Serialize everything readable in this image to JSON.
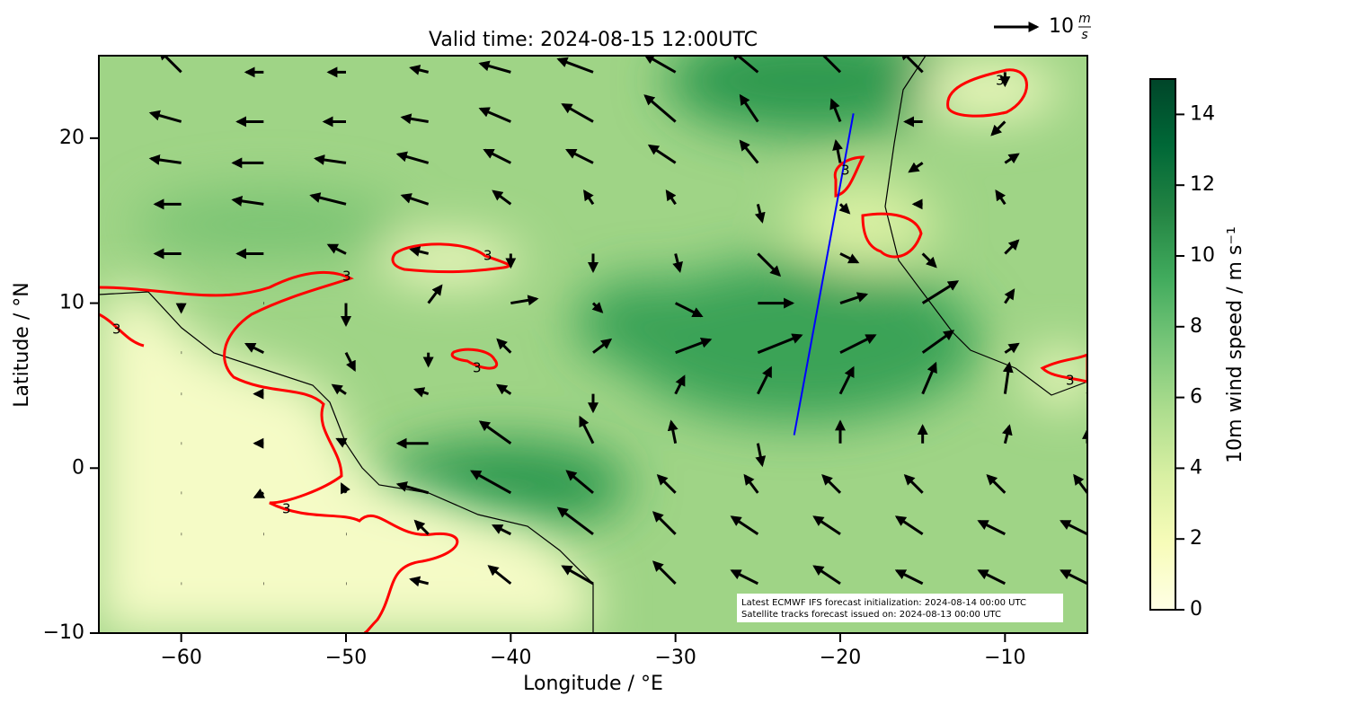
{
  "chart_data": {
    "type": "quiver_map",
    "title": "Valid time: 2024-08-15 12:00UTC",
    "x_label": "Longitude / °E",
    "y_label": "Latitude / °N",
    "xlim": [
      -65,
      -5
    ],
    "ylim": [
      -10,
      25
    ],
    "xticks": [
      {
        "value": -60,
        "label": "−60"
      },
      {
        "value": -50,
        "label": "−50"
      },
      {
        "value": -40,
        "label": "−40"
      },
      {
        "value": -30,
        "label": "−30"
      },
      {
        "value": -20,
        "label": "−20"
      },
      {
        "value": -10,
        "label": "−10"
      }
    ],
    "yticks": [
      {
        "value": -10,
        "label": "−10"
      },
      0,
      10,
      20
    ],
    "wind": {
      "color": "#000000",
      "lon": [
        -60,
        -55,
        -50,
        -45,
        -40,
        -35,
        -30,
        -25,
        -20,
        -15,
        -10,
        -5
      ],
      "lat": [
        24,
        21,
        18.5,
        16,
        13,
        10,
        7,
        4.5,
        1.5,
        -1.5,
        -4,
        -7
      ],
      "u": [
        [
          -5,
          -4,
          -4,
          -4,
          -7,
          -8,
          -7,
          -6,
          -6,
          -5,
          0,
          3
        ],
        [
          -7,
          -6,
          -5,
          -6,
          -7,
          -7,
          -7,
          -4,
          -2,
          -4,
          -3,
          6
        ],
        [
          -7,
          -7,
          -7,
          -7,
          -6,
          -6,
          -6,
          -4,
          -1,
          -3,
          3,
          3
        ],
        [
          -6,
          -7,
          -8,
          -6,
          -4,
          -2,
          -2,
          1,
          2,
          -2,
          -2,
          4
        ],
        [
          -6,
          -6,
          -4,
          -4,
          0,
          0,
          1,
          5,
          4,
          3,
          3,
          4
        ],
        [
          0,
          0,
          0,
          3,
          6,
          2,
          6,
          8,
          6,
          8,
          2,
          3
        ],
        [
          0,
          -4,
          2,
          0,
          -3,
          4,
          8,
          10,
          8,
          7,
          3,
          3
        ],
        [
          0,
          -2,
          -3,
          -3,
          -3,
          0,
          2,
          3,
          3,
          3,
          1,
          2
        ],
        [
          0,
          -2,
          -2,
          -7,
          -7,
          -3,
          -1,
          1,
          0,
          0,
          1,
          0
        ],
        [
          0,
          -2,
          -1,
          -7,
          -9,
          -6,
          -4,
          -3,
          -4,
          -4,
          -4,
          -3
        ],
        [
          0,
          0,
          0,
          -3,
          -4,
          -8,
          -5,
          -6,
          -6,
          -6,
          -6,
          -6
        ],
        [
          0,
          0,
          0,
          -4,
          -5,
          -7,
          -5,
          -6,
          -6,
          -6,
          -6,
          -6
        ]
      ],
      "v": [
        [
          5,
          0,
          0,
          1,
          2,
          3,
          4,
          5,
          6,
          5,
          -3,
          3
        ],
        [
          2,
          0,
          0,
          1,
          3,
          4,
          6,
          6,
          5,
          0,
          -3,
          4
        ],
        [
          1,
          0,
          1,
          2,
          3,
          3,
          4,
          5,
          5,
          -2,
          2,
          3
        ],
        [
          0,
          1,
          2,
          2,
          3,
          3,
          3,
          -4,
          -2,
          0,
          3,
          4
        ],
        [
          0,
          0,
          2,
          1,
          -3,
          -4,
          -4,
          -5,
          -2,
          -3,
          3,
          4
        ],
        [
          -2,
          0,
          -5,
          4,
          1,
          -2,
          -3,
          0,
          2,
          5,
          3,
          3
        ],
        [
          0,
          2,
          -4,
          -3,
          3,
          3,
          3,
          4,
          4,
          5,
          2,
          2
        ],
        [
          0,
          0,
          2,
          1,
          2,
          -4,
          4,
          6,
          6,
          7,
          7,
          5
        ],
        [
          0,
          0,
          1,
          0,
          5,
          6,
          5,
          -5,
          5,
          4,
          4,
          3
        ],
        [
          0,
          -1,
          2,
          2,
          5,
          5,
          4,
          4,
          4,
          4,
          4,
          4
        ],
        [
          0,
          0,
          0,
          3,
          2,
          6,
          5,
          4,
          4,
          4,
          3,
          3
        ],
        [
          0,
          0,
          0,
          1,
          4,
          4,
          5,
          3,
          4,
          3,
          3,
          3
        ]
      ]
    },
    "quiver_key": {
      "value": 10,
      "unit_numerator": "m",
      "unit_denominator": "s"
    },
    "colorbar": {
      "label": "10m wind speed / m s⁻¹",
      "clim": [
        0,
        15
      ],
      "ticks": [
        0,
        2,
        4,
        6,
        8,
        10,
        12,
        14
      ],
      "colors": [
        "#ffffe5",
        "#f7fcb9",
        "#d9f0a3",
        "#addd8e",
        "#78c679",
        "#41ab5d",
        "#238443",
        "#006837",
        "#004529"
      ]
    },
    "contour": {
      "level": 3,
      "color": "#ff0000"
    },
    "track": {
      "lon": [
        -22.8,
        -19.2
      ],
      "lat": [
        2,
        21.5
      ],
      "color": "#0000ff"
    },
    "annotation": [
      "Latest ECMWF IFS forecast initialization: 2024-08-14 00:00 UTC",
      "Satellite tracks forecast issued on: 2024-08-13 00:00 UTC"
    ]
  }
}
